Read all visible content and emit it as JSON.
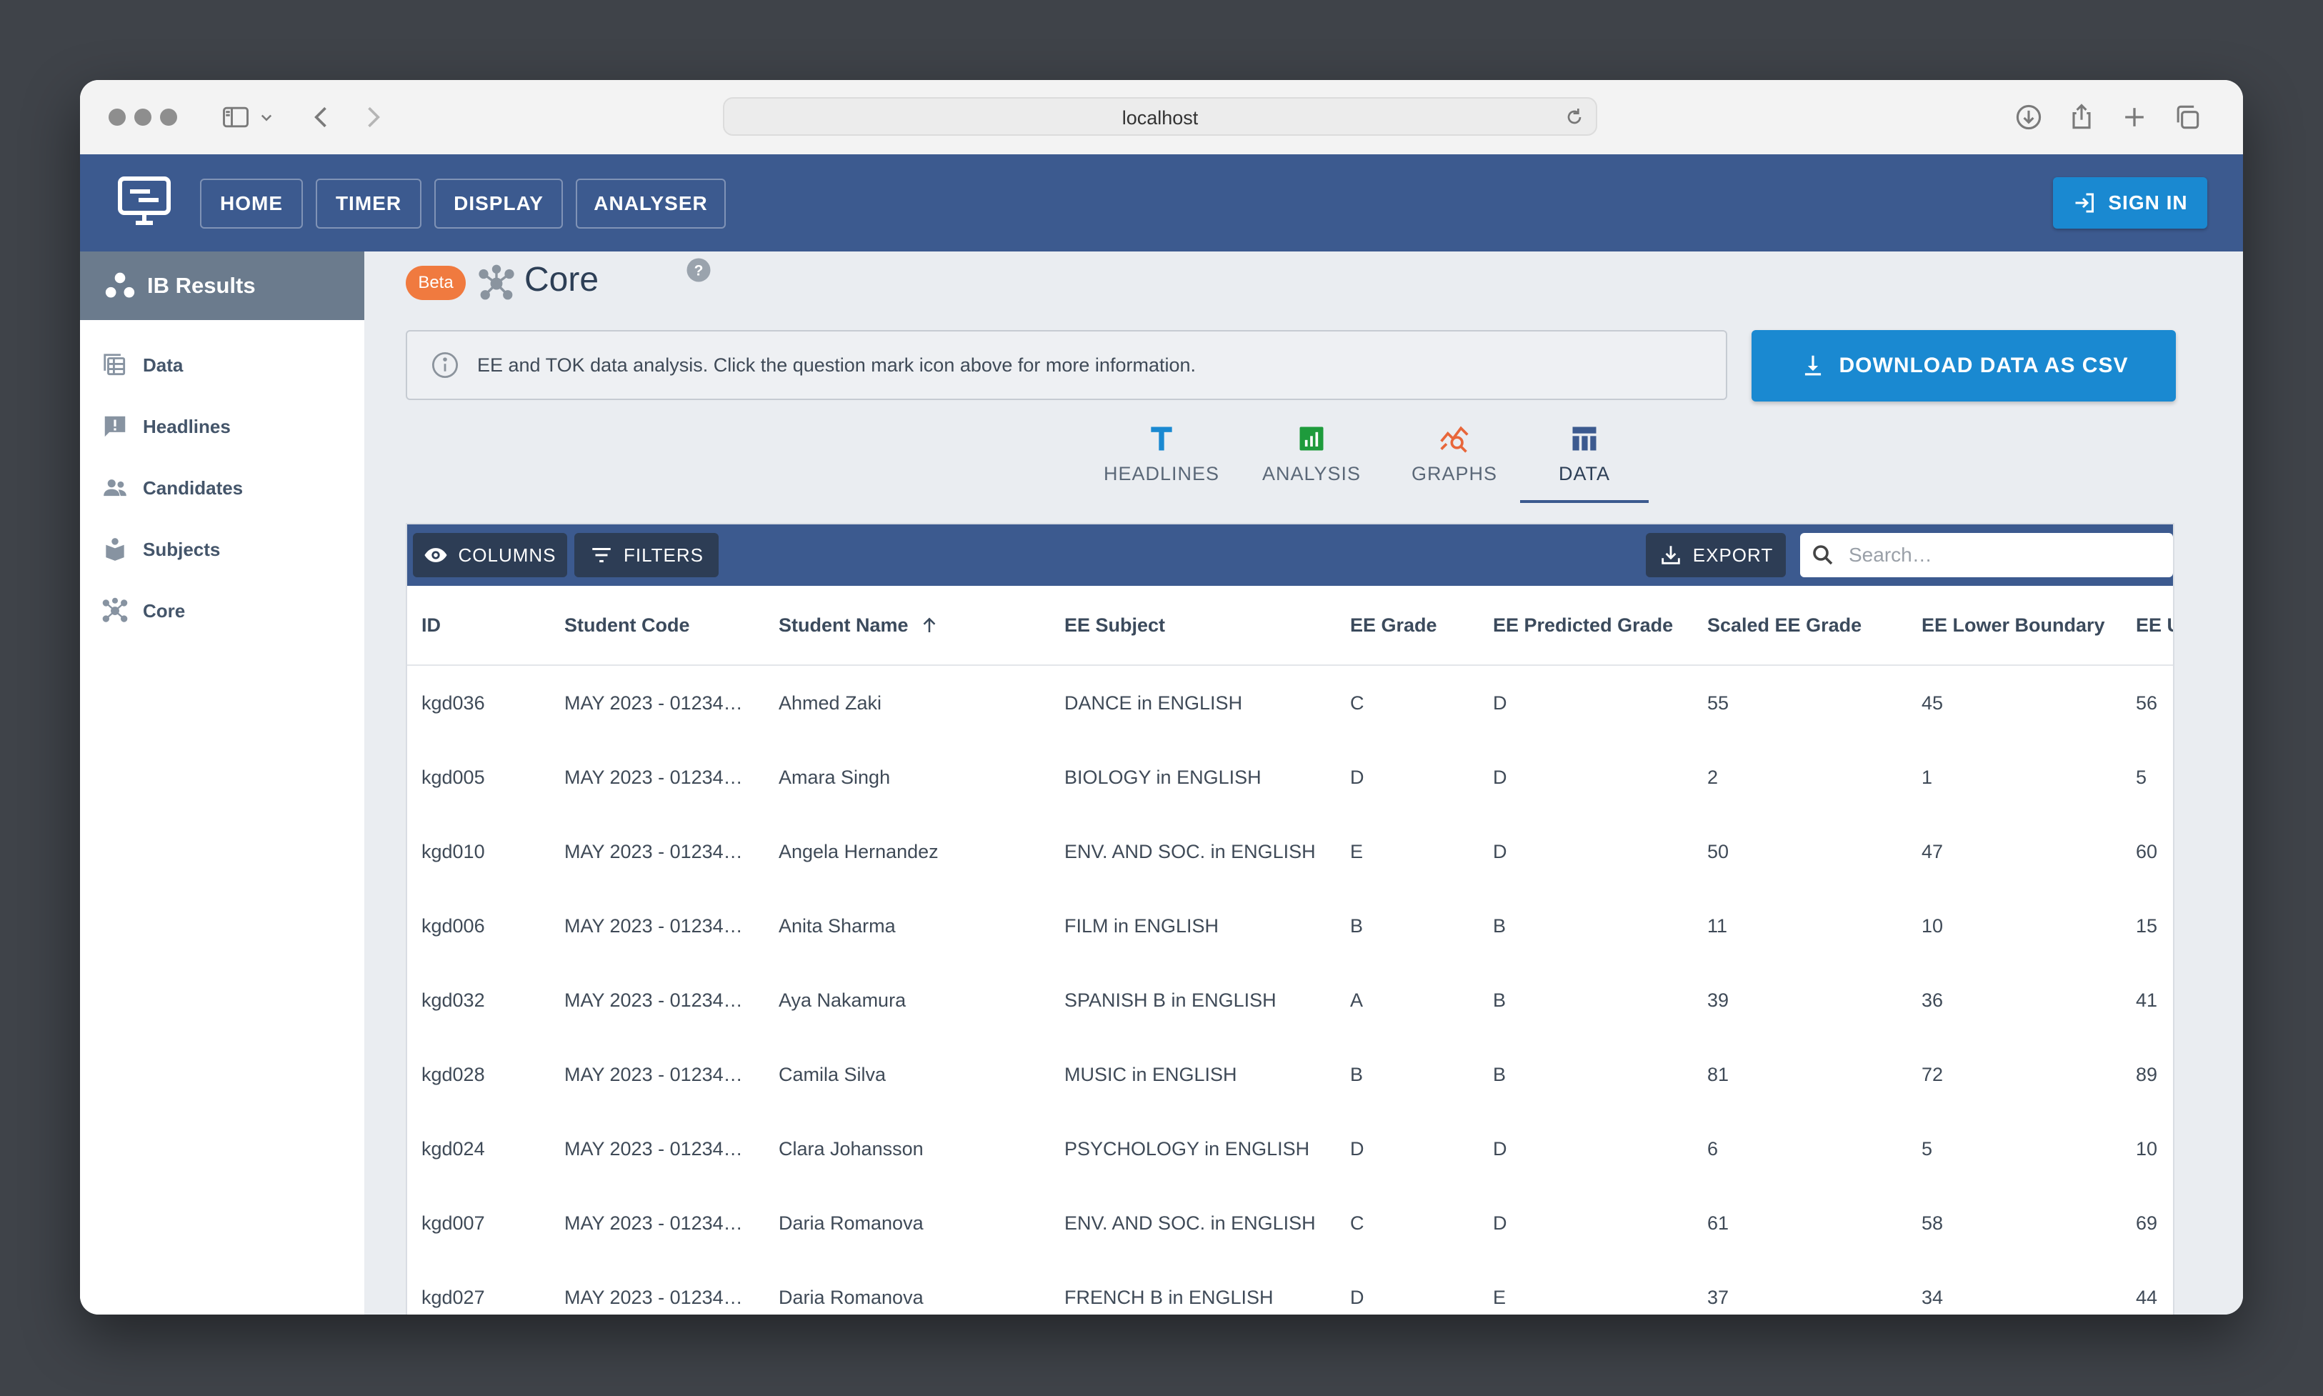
{
  "browser": {
    "url": "localhost"
  },
  "nav": {
    "items": [
      "HOME",
      "TIMER",
      "DISPLAY",
      "ANALYSER"
    ],
    "signin_label": "SIGN IN"
  },
  "sidebar": {
    "title": "IB Results",
    "items": [
      {
        "label": "Data",
        "icon": "table-icon"
      },
      {
        "label": "Headlines",
        "icon": "alert-comment-icon"
      },
      {
        "label": "Candidates",
        "icon": "people-icon"
      },
      {
        "label": "Subjects",
        "icon": "books-icon"
      },
      {
        "label": "Core",
        "icon": "molecule-icon"
      }
    ]
  },
  "page": {
    "badge": "Beta",
    "title": "Core",
    "info": "EE and TOK data analysis. Click the question mark icon above for more information.",
    "download_label": "DOWNLOAD DATA AS CSV"
  },
  "tabs": [
    {
      "label": "HEADLINES",
      "icon": "text-t-icon",
      "color": "#1a89d1"
    },
    {
      "label": "ANALYSIS",
      "icon": "bar-chart-icon",
      "color": "#1e9b3c"
    },
    {
      "label": "GRAPHS",
      "icon": "line-graph-search-icon",
      "color": "#e8663a"
    },
    {
      "label": "DATA",
      "icon": "table-icon",
      "color": "#3c5a8f",
      "active": true
    }
  ],
  "toolbar": {
    "columns_label": "COLUMNS",
    "filters_label": "FILTERS",
    "export_label": "EXPORT",
    "search_placeholder": "Search…"
  },
  "table": {
    "columns": [
      "ID",
      "Student Code",
      "Student Name",
      "EE Subject",
      "EE Grade",
      "EE Predicted Grade",
      "Scaled EE Grade",
      "EE Lower Boundary",
      "EE U"
    ],
    "sorted_by": "Student Name",
    "rows": [
      [
        "kgd036",
        "MAY 2023 - 01234…",
        "Ahmed Zaki",
        "DANCE in ENGLISH",
        "C",
        "D",
        "55",
        "45",
        "56"
      ],
      [
        "kgd005",
        "MAY 2023 - 01234…",
        "Amara Singh",
        "BIOLOGY in ENGLISH",
        "D",
        "D",
        "2",
        "1",
        "5"
      ],
      [
        "kgd010",
        "MAY 2023 - 01234…",
        "Angela Hernandez",
        "ENV. AND SOC. in ENGLISH",
        "E",
        "D",
        "50",
        "47",
        "60"
      ],
      [
        "kgd006",
        "MAY 2023 - 01234…",
        "Anita Sharma",
        "FILM in ENGLISH",
        "B",
        "B",
        "11",
        "10",
        "15"
      ],
      [
        "kgd032",
        "MAY 2023 - 01234…",
        "Aya Nakamura",
        "SPANISH B in ENGLISH",
        "A",
        "B",
        "39",
        "36",
        "41"
      ],
      [
        "kgd028",
        "MAY 2023 - 01234…",
        "Camila Silva",
        "MUSIC in ENGLISH",
        "B",
        "B",
        "81",
        "72",
        "89"
      ],
      [
        "kgd024",
        "MAY 2023 - 01234…",
        "Clara Johansson",
        "PSYCHOLOGY in ENGLISH",
        "D",
        "D",
        "6",
        "5",
        "10"
      ],
      [
        "kgd007",
        "MAY 2023 - 01234…",
        "Daria Romanova",
        "ENV. AND SOC. in ENGLISH",
        "C",
        "D",
        "61",
        "58",
        "69"
      ],
      [
        "kgd027",
        "MAY 2023 - 01234…",
        "Daria Romanova",
        "FRENCH B in ENGLISH",
        "D",
        "E",
        "37",
        "34",
        "44"
      ]
    ]
  }
}
